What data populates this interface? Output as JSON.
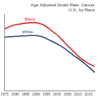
{
  "chart_data": {
    "type": "line",
    "title": "Age Adjusted Death Rate: Cancer",
    "subtitle": "U.S., by Race",
    "x": [
      1975,
      1976,
      1977,
      1978,
      1979,
      1980,
      1981,
      1982,
      1983,
      1984,
      1985,
      1986,
      1987,
      1988,
      1989,
      1990,
      1991,
      1992,
      1993,
      1994,
      1995,
      1996,
      1997,
      1998,
      1999,
      2000,
      2001,
      2002,
      2003,
      2004,
      2005,
      2006,
      2007,
      2008,
      2009,
      2010,
      2011,
      2012,
      2013,
      2014,
      2015,
      2016,
      2017,
      2018
    ],
    "series": [
      {
        "name": "Black",
        "color": "#e02020",
        "values": [
          278,
          281,
          284,
          286,
          288,
          290,
          291,
          292,
          293,
          294,
          295,
          295,
          296,
          296,
          296,
          296,
          295,
          293,
          291,
          288,
          284,
          280,
          275,
          270,
          266,
          261,
          255,
          249,
          243,
          236,
          230,
          224,
          218,
          212,
          206,
          200,
          195,
          190,
          186,
          182,
          178,
          175,
          172,
          170
        ]
      },
      {
        "name": "White",
        "color": "#1f3f6e",
        "values": [
          254,
          255,
          255,
          256,
          256,
          257,
          257,
          257,
          258,
          258,
          258,
          259,
          259,
          259,
          259,
          259,
          258,
          257,
          255,
          253,
          250,
          247,
          244,
          241,
          238,
          235,
          231,
          228,
          224,
          220,
          215,
          210,
          206,
          201,
          197,
          193,
          188,
          184,
          179,
          174,
          168,
          163,
          158,
          152
        ]
      }
    ],
    "xlim": [
      1975,
      2018
    ],
    "xticks": [
      1975,
      1980,
      1985,
      1990,
      1995,
      2000,
      2005,
      2010,
      2015
    ],
    "ylim": [
      100,
      320
    ],
    "tick_labels": "x",
    "grid": false
  }
}
